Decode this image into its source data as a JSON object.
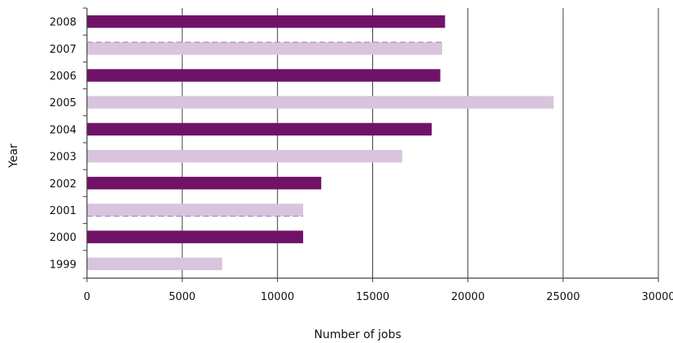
{
  "chart_data": {
    "type": "bar",
    "orientation": "horizontal",
    "categories": [
      "2008",
      "2007",
      "2006",
      "2005",
      "2004",
      "2003",
      "2002",
      "2001",
      "2000",
      "1999"
    ],
    "values": [
      18800,
      18650,
      18550,
      24500,
      18100,
      16550,
      12300,
      11350,
      11350,
      7100
    ],
    "xlabel": "Number of jobs",
    "ylabel": "Year",
    "xlim": [
      0,
      30000
    ],
    "xticks": [
      "0",
      "5000",
      "10000",
      "15000",
      "20000",
      "25000",
      "30000"
    ],
    "grid": "vertical",
    "colors": {
      "dark_bar": "#701368",
      "light_bar": "#d8c4dc",
      "grid": "#404040",
      "axis": "#404040",
      "dashed_line": "#8f7fc3"
    },
    "bar_colors": [
      "#701368",
      "#d8c4dc",
      "#701368",
      "#d8c4dc",
      "#701368",
      "#d8c4dc",
      "#701368",
      "#d8c4dc",
      "#701368",
      "#d8c4dc"
    ]
  }
}
